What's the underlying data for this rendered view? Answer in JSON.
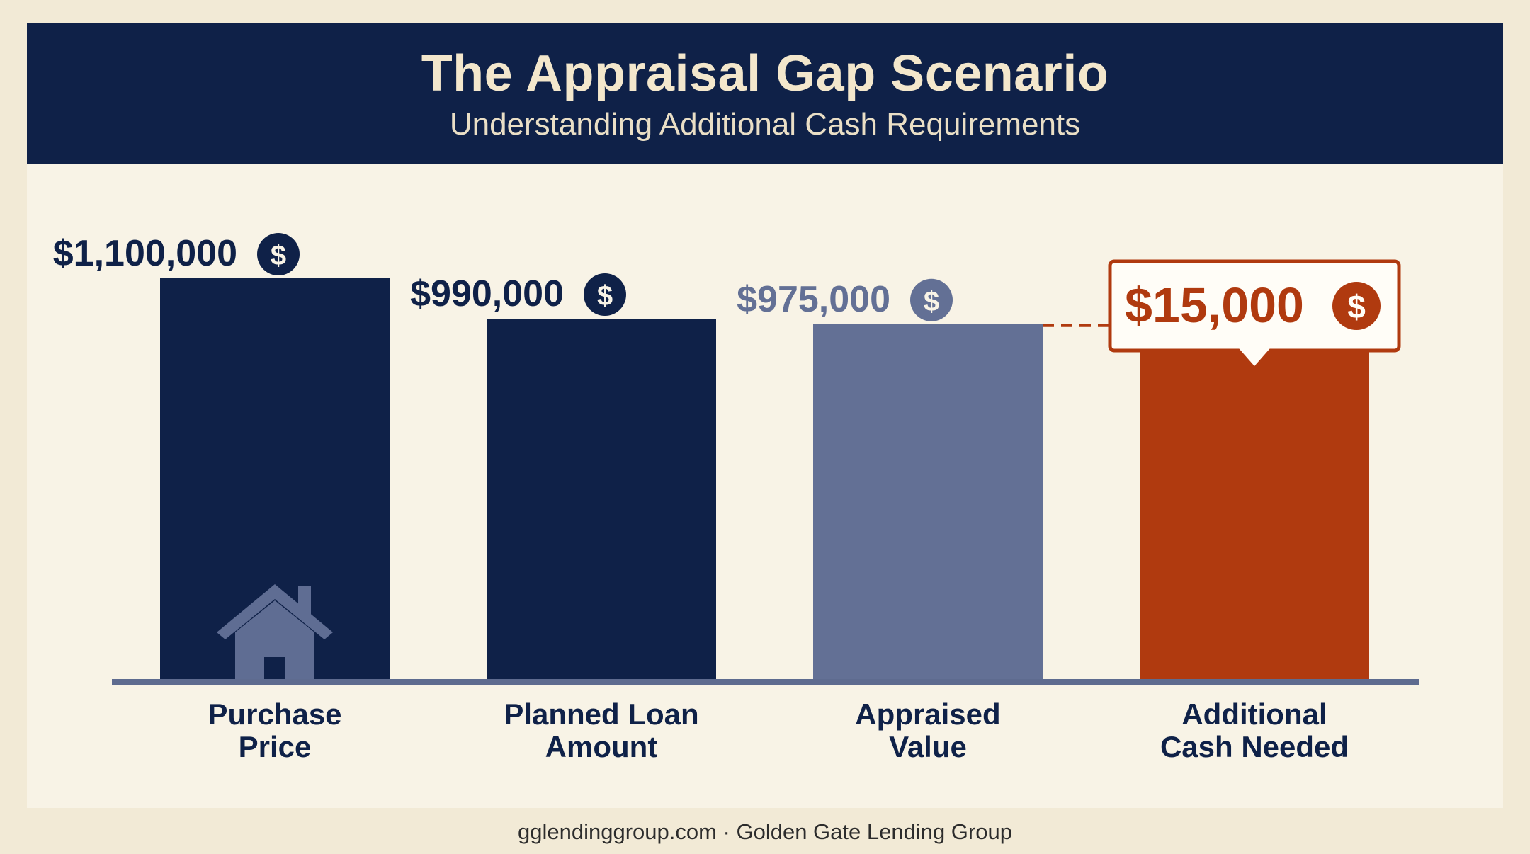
{
  "header": {
    "title": "The Appraisal Gap Scenario",
    "subtitle": "Understanding Additional Cash Requirements"
  },
  "footer": {
    "text": "gglendinggroup.com · Golden Gate Lending Group"
  },
  "colors": {
    "navy": "#0f2148",
    "slate": "#637095",
    "rust": "#b03a0f",
    "cream": "#f8f3e6",
    "background": "#f2ead6"
  },
  "chart_data": {
    "type": "bar",
    "categories": [
      "Purchase Price",
      "Planned Loan Amount",
      "Appraised Value",
      "Additional Cash Needed"
    ],
    "category_lines": [
      [
        "Purchase",
        "Price"
      ],
      [
        "Planned Loan",
        "Amount"
      ],
      [
        "Appraised",
        "Value"
      ],
      [
        "Additional",
        "Cash Needed"
      ]
    ],
    "values": [
      1100000,
      990000,
      975000,
      15000
    ],
    "value_labels": [
      "$1,100,000",
      "$990,000",
      "$975,000",
      "$15,000"
    ],
    "stacked_gap_base": 975000,
    "ylim": [
      0,
      1100000
    ],
    "bar_colors": [
      "#0f2148",
      "#0f2148",
      "#637095",
      "#b03a0f"
    ],
    "label_colors": [
      "#0f2148",
      "#0f2148",
      "#637095",
      "#b03a0f"
    ],
    "dollar_badge": "$",
    "highlight_index": 3,
    "icon": "house-icon",
    "grid": false,
    "legend": "none"
  }
}
